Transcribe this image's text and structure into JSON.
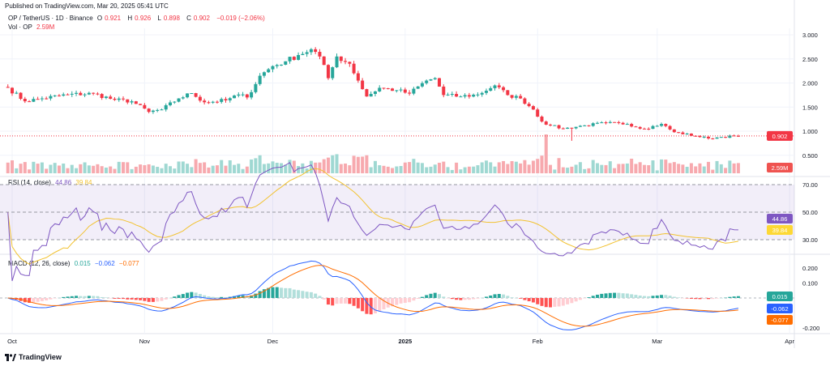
{
  "header": {
    "published": "Published on TradingView.com, Mar 20, 2025 05:41 UTC"
  },
  "legend": {
    "symbol": "OP / TetherUS · 1D · Binance",
    "open_label": "O",
    "open": "0.921",
    "high_label": "H",
    "high": "0.926",
    "low_label": "L",
    "low": "0.898",
    "close_label": "C",
    "close": "0.902",
    "change": "−0.019 (−2.06%)",
    "vol_label": "Vol · OP",
    "vol": "2.59M",
    "rsi_label": "RSI (14, close)",
    "rsi": "44.86",
    "rsi_ma": "39.84",
    "macd_label": "MACD (12, 26, close)",
    "macd_hist": "0.015",
    "macd": "−0.062",
    "macd_signal": "−0.077"
  },
  "footer": {
    "brand": "TradingView"
  },
  "colors": {
    "up": "#26a69a",
    "down": "#f23645",
    "rsi": "#7e57c2",
    "rsi_ma": "#f2c230",
    "macd": "#2962ff",
    "signal": "#ff6d00"
  },
  "chart_data": {
    "type": "candlestick",
    "price_ticks": [
      "3.000",
      "2.500",
      "2.000",
      "1.500",
      "1.000",
      "0.500"
    ],
    "rsi_ticks": [
      "70.00",
      "50.00",
      "30.00"
    ],
    "macd_ticks": [
      "0.200",
      "0.100",
      "-0.200"
    ],
    "time_ticks": [
      "Oct",
      "Nov",
      "Dec",
      "2025",
      "Feb",
      "Mar",
      "Apr"
    ],
    "last_price_badge": "0.902",
    "volume_badge": "2.59M",
    "rsi_badge": "44.86",
    "rsi_ma_badge": "39.84",
    "macd_hist_badge": "0.015",
    "macd_badge": "-0.062",
    "signal_badge": "-0.077",
    "close_anchors": [
      [
        "2024-09-30",
        1.9
      ],
      [
        "2024-10-04",
        1.62
      ],
      [
        "2024-10-08",
        1.68
      ],
      [
        "2024-10-14",
        1.76
      ],
      [
        "2024-10-20",
        1.78
      ],
      [
        "2024-10-25",
        1.65
      ],
      [
        "2024-10-29",
        1.62
      ],
      [
        "2024-11-02",
        1.4
      ],
      [
        "2024-11-05",
        1.45
      ],
      [
        "2024-11-09",
        1.68
      ],
      [
        "2024-11-12",
        1.79
      ],
      [
        "2024-11-15",
        1.6
      ],
      [
        "2024-11-20",
        1.64
      ],
      [
        "2024-11-23",
        1.76
      ],
      [
        "2024-11-25",
        1.7
      ],
      [
        "2024-11-28",
        2.15
      ],
      [
        "2024-12-01",
        2.35
      ],
      [
        "2024-12-04",
        2.45
      ],
      [
        "2024-12-07",
        2.58
      ],
      [
        "2024-12-10",
        2.7
      ],
      [
        "2024-12-12",
        2.55
      ],
      [
        "2024-12-14",
        2.1
      ],
      [
        "2024-12-16",
        2.55
      ],
      [
        "2024-12-19",
        2.4
      ],
      [
        "2024-12-21",
        2.05
      ],
      [
        "2024-12-23",
        1.72
      ],
      [
        "2024-12-26",
        1.9
      ],
      [
        "2024-12-30",
        1.85
      ],
      [
        "2025-01-02",
        1.78
      ],
      [
        "2025-01-06",
        2.05
      ],
      [
        "2025-01-08",
        2.1
      ],
      [
        "2025-01-10",
        1.75
      ],
      [
        "2025-01-14",
        1.72
      ],
      [
        "2025-01-18",
        1.76
      ],
      [
        "2025-01-22",
        1.95
      ],
      [
        "2025-01-25",
        1.75
      ],
      [
        "2025-01-28",
        1.68
      ],
      [
        "2025-01-31",
        1.45
      ],
      [
        "2025-02-02",
        1.2
      ],
      [
        "2025-02-04",
        1.12
      ],
      [
        "2025-02-07",
        1.05
      ],
      [
        "2025-02-12",
        1.12
      ],
      [
        "2025-02-17",
        1.17
      ],
      [
        "2025-02-22",
        1.15
      ],
      [
        "2025-02-26",
        1.05
      ],
      [
        "2025-03-02",
        1.15
      ],
      [
        "2025-03-05",
        0.98
      ],
      [
        "2025-03-10",
        0.9
      ],
      [
        "2025-03-13",
        0.85
      ],
      [
        "2025-03-16",
        0.88
      ],
      [
        "2025-03-20",
        0.902
      ]
    ]
  }
}
